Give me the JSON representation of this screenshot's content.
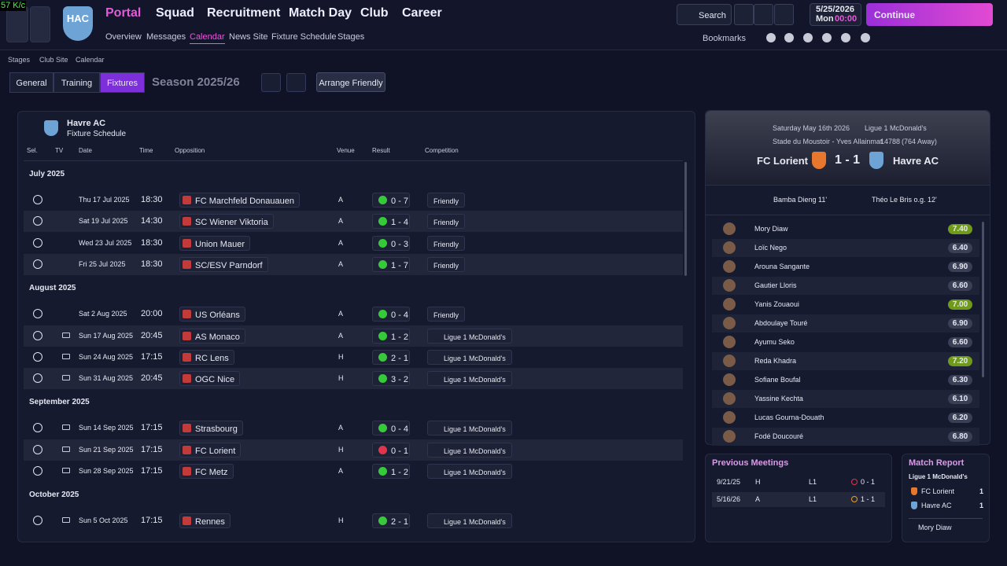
{
  "fps": "57 K/c",
  "nav": {
    "badge": "HAC",
    "menus": [
      "Portal",
      "Squad",
      "Recruitment",
      "Match Day",
      "Club",
      "Career"
    ],
    "submenu": [
      "Overview",
      "Messages",
      "Calendar",
      "News Site",
      "Fixture Schedule",
      "Stages"
    ],
    "search": "Search",
    "date": "5/25/2026",
    "day": "Mon",
    "time": "00:00",
    "continue": "Continue",
    "bookmarks": "Bookmarks"
  },
  "breadcrumb": [
    "Stages",
    "Club Site",
    "Calendar"
  ],
  "tabs": [
    "General",
    "Training",
    "Fixtures"
  ],
  "season": "Season 2025/26",
  "arrange": "Arrange Friendly",
  "fixtures": {
    "team": "Havre AC",
    "subtitle": "Fixture Schedule",
    "columns": [
      "Sel.",
      "TV",
      "Date",
      "Time",
      "Opposition",
      "Venue",
      "Result",
      "Competition"
    ],
    "months": [
      {
        "name": "July 2025",
        "rows": [
          {
            "tv": false,
            "date": "Thu 17 Jul 2025",
            "time": "18:30",
            "opposition": "FC Marchfeld Donauauen",
            "venue": "A",
            "result": "0 - 7",
            "marker": "#36c93a",
            "competition": "Friendly"
          },
          {
            "tv": false,
            "date": "Sat 19 Jul 2025",
            "time": "14:30",
            "opposition": "SC Wiener Viktoria",
            "venue": "A",
            "result": "1 - 4",
            "marker": "#36c93a",
            "competition": "Friendly"
          },
          {
            "tv": false,
            "date": "Wed 23 Jul 2025",
            "time": "18:30",
            "opposition": "Union Mauer",
            "venue": "A",
            "result": "0 - 3",
            "marker": "#36c93a",
            "competition": "Friendly"
          },
          {
            "tv": false,
            "date": "Fri 25 Jul 2025",
            "time": "18:30",
            "opposition": "SC/ESV Parndorf",
            "venue": "A",
            "result": "1 - 7",
            "marker": "#36c93a",
            "competition": "Friendly"
          }
        ]
      },
      {
        "name": "August 2025",
        "rows": [
          {
            "tv": false,
            "date": "Sat 2 Aug 2025",
            "time": "20:00",
            "opposition": "US Orléans",
            "venue": "A",
            "result": "0 - 4",
            "marker": "#36c93a",
            "competition": "Friendly"
          },
          {
            "tv": true,
            "date": "Sun 17 Aug 2025",
            "time": "20:45",
            "opposition": "AS Monaco",
            "venue": "A",
            "result": "1 - 2",
            "marker": "#36c93a",
            "competition": "Ligue 1 McDonald's"
          },
          {
            "tv": true,
            "date": "Sun 24 Aug 2025",
            "time": "17:15",
            "opposition": "RC Lens",
            "venue": "H",
            "result": "2 - 1",
            "marker": "#36c93a",
            "competition": "Ligue 1 McDonald's"
          },
          {
            "tv": true,
            "date": "Sun 31 Aug 2025",
            "time": "20:45",
            "opposition": "OGC Nice",
            "venue": "H",
            "result": "3 - 2",
            "marker": "#36c93a",
            "competition": "Ligue 1 McDonald's"
          }
        ]
      },
      {
        "name": "September 2025",
        "rows": [
          {
            "tv": true,
            "date": "Sun 14 Sep 2025",
            "time": "17:15",
            "opposition": "Strasbourg",
            "venue": "A",
            "result": "0 - 4",
            "marker": "#36c93a",
            "competition": "Ligue 1 McDonald's"
          },
          {
            "tv": true,
            "date": "Sun 21 Sep 2025",
            "time": "17:15",
            "opposition": "FC Lorient",
            "venue": "H",
            "result": "0 - 1",
            "marker": "#e0354a",
            "competition": "Ligue 1 McDonald's"
          },
          {
            "tv": true,
            "date": "Sun 28 Sep 2025",
            "time": "17:15",
            "opposition": "FC Metz",
            "venue": "A",
            "result": "1 - 2",
            "marker": "#36c93a",
            "competition": "Ligue 1 McDonald's"
          }
        ]
      },
      {
        "name": "October 2025",
        "rows": [
          {
            "tv": true,
            "date": "Sun 5 Oct 2025",
            "time": "17:15",
            "opposition": "Rennes",
            "venue": "H",
            "result": "2 - 1",
            "marker": "#36c93a",
            "competition": "Ligue 1 McDonald's"
          }
        ]
      }
    ]
  },
  "match": {
    "date": "Saturday May 16th 2026",
    "competition": "Ligue 1 McDonald's",
    "stadium": "Stade du Moustoir - Yves Allainmat",
    "attendance": "14788",
    "away_fans": "(764 Away)",
    "home": "FC Lorient",
    "score": "1 - 1",
    "away": "Havre AC",
    "home_scorer": "Bamba Dieng 11'",
    "away_scorer": "Théo Le Bris o.g. 12'",
    "players": [
      {
        "name": "Mory Diaw",
        "rating": "7.40",
        "color": "#6f9a1c"
      },
      {
        "name": "Loïc Nego",
        "rating": "6.40",
        "color": "#3a3f55"
      },
      {
        "name": "Arouna Sangante",
        "rating": "6.90",
        "color": "#3a3f55"
      },
      {
        "name": "Gautier Lloris",
        "rating": "6.60",
        "color": "#3a3f55"
      },
      {
        "name": "Yanis Zouaoui",
        "rating": "7.00",
        "color": "#6f9a1c"
      },
      {
        "name": "Abdoulaye Touré",
        "rating": "6.90",
        "color": "#3a3f55"
      },
      {
        "name": "Ayumu Seko",
        "rating": "6.60",
        "color": "#3a3f55"
      },
      {
        "name": "Reda Khadra",
        "rating": "7.20",
        "color": "#6f9a1c"
      },
      {
        "name": "Sofiane Boufal",
        "rating": "6.30",
        "color": "#3a3f55"
      },
      {
        "name": "Yassine Kechta",
        "rating": "6.10",
        "color": "#3a3f55"
      },
      {
        "name": "Lucas Gourna-Douath",
        "rating": "6.20",
        "color": "#3a3f55"
      },
      {
        "name": "Fodé Doucouré",
        "rating": "6.80",
        "color": "#3a3f55"
      }
    ]
  },
  "previous_meetings": {
    "title": "Previous Meetings",
    "rows": [
      [
        "9/21/25",
        "H",
        "L1",
        "0 - 1"
      ],
      [
        "5/16/26",
        "A",
        "L1",
        "1 - 1"
      ]
    ]
  },
  "match_report": {
    "title": "Match Report",
    "competition": "Ligue 1 McDonald's",
    "teams": [
      [
        "FC Lorient",
        "1"
      ],
      [
        "Havre AC",
        "1"
      ]
    ],
    "player_of_match": "Mory Diaw"
  }
}
